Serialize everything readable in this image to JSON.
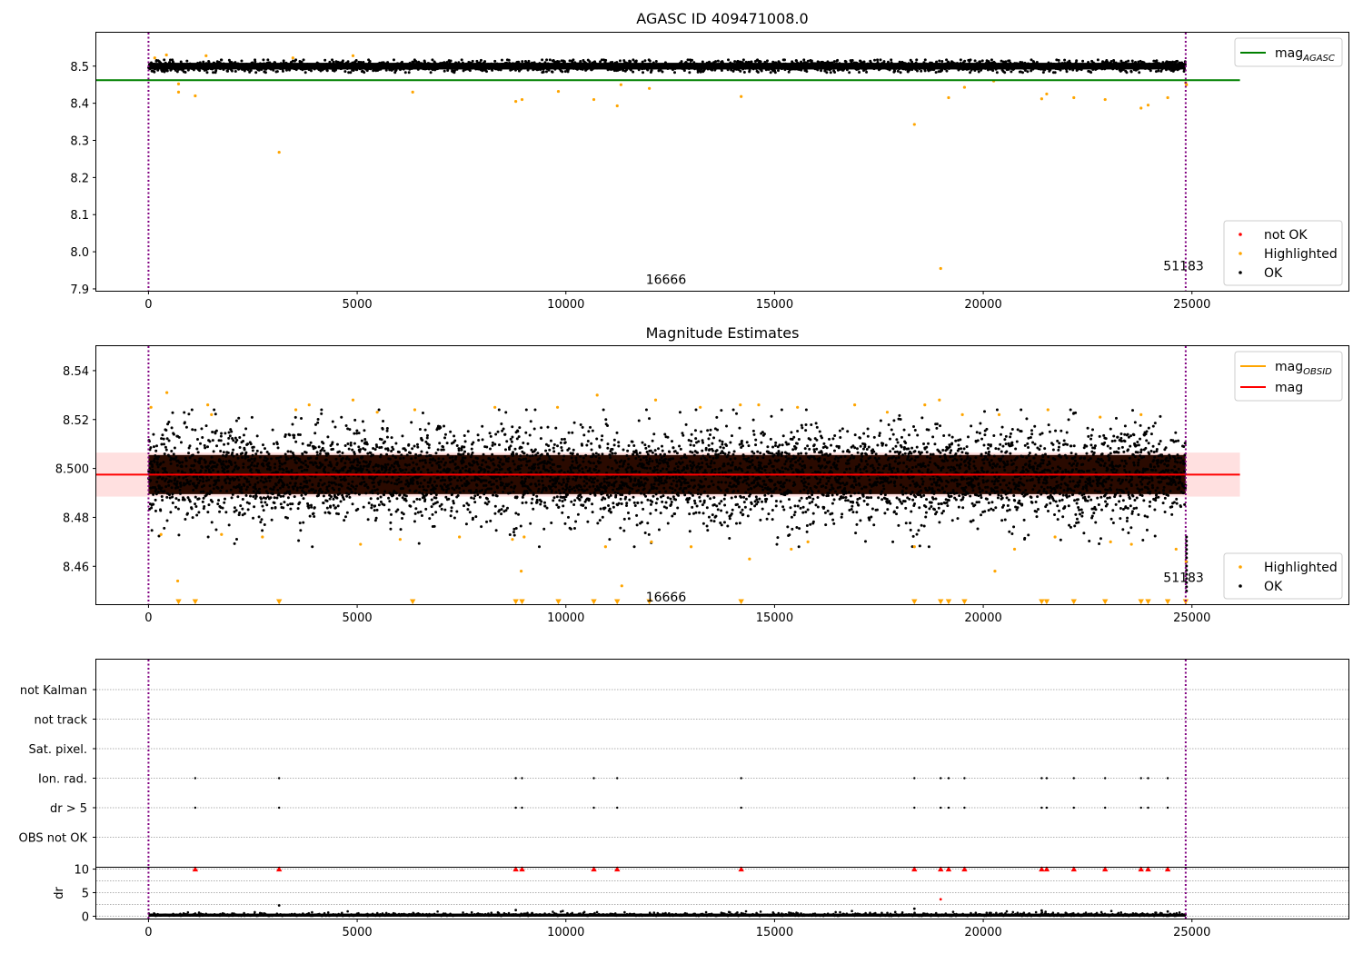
{
  "chart_data": [
    {
      "type": "scatter",
      "title": "AGASC ID 409471008.0",
      "xlim": [
        -1250,
        28750
      ],
      "ylim": [
        7.895,
        8.59
      ],
      "x_ticks": [
        0,
        5000,
        10000,
        15000,
        20000,
        25000
      ],
      "y_ticks": [
        7.9,
        8.0,
        8.1,
        8.2,
        8.3,
        8.4,
        8.5
      ],
      "y_tick_labels": [
        "7.9",
        "8.0",
        "8.1",
        "8.2",
        "8.3",
        "8.4",
        "8.5"
      ],
      "mag_agasc": 8.462,
      "mag_agasc_line_xrange": [
        -1250,
        26150
      ],
      "ok_band": {
        "center": 8.5,
        "halfwidth": 0.01,
        "x": [
          0,
          24850
        ]
      },
      "obs_boundaries": [
        0,
        24850
      ],
      "annotations": [
        {
          "text": "16666",
          "x": 12400,
          "y": 7.925
        },
        {
          "text": "51183",
          "x": 24800,
          "y": 7.962
        }
      ],
      "legend_lines": [
        {
          "label": "mag",
          "subscript": "AGASC",
          "color": "#008000"
        }
      ],
      "legend_points": [
        {
          "label": "not OK",
          "color": "#ff0000"
        },
        {
          "label": "Highlighted",
          "color": "#ffa500"
        },
        {
          "label": "OK",
          "color": "#000000"
        }
      ],
      "highlighted_points": [
        {
          "x": 150,
          "y": 8.522
        },
        {
          "x": 430,
          "y": 8.53
        },
        {
          "x": 1380,
          "y": 8.528
        },
        {
          "x": 3460,
          "y": 8.522
        },
        {
          "x": 4900,
          "y": 8.528
        },
        {
          "x": 720,
          "y": 8.452
        },
        {
          "x": 720,
          "y": 8.43
        },
        {
          "x": 1120,
          "y": 8.42
        },
        {
          "x": 3130,
          "y": 8.268
        },
        {
          "x": 6330,
          "y": 8.43
        },
        {
          "x": 8800,
          "y": 8.405
        },
        {
          "x": 8950,
          "y": 8.41
        },
        {
          "x": 9820,
          "y": 8.432
        },
        {
          "x": 10670,
          "y": 8.41
        },
        {
          "x": 11230,
          "y": 8.393
        },
        {
          "x": 11320,
          "y": 8.45
        },
        {
          "x": 12000,
          "y": 8.44
        },
        {
          "x": 14200,
          "y": 8.418
        },
        {
          "x": 18350,
          "y": 8.343
        },
        {
          "x": 18980,
          "y": 7.955
        },
        {
          "x": 19170,
          "y": 8.415
        },
        {
          "x": 19550,
          "y": 8.443
        },
        {
          "x": 20250,
          "y": 8.46
        },
        {
          "x": 21400,
          "y": 8.412
        },
        {
          "x": 21520,
          "y": 8.425
        },
        {
          "x": 22170,
          "y": 8.415
        },
        {
          "x": 22920,
          "y": 8.41
        },
        {
          "x": 23780,
          "y": 8.387
        },
        {
          "x": 23950,
          "y": 8.395
        },
        {
          "x": 24420,
          "y": 8.415
        },
        {
          "x": 24850,
          "y": 8.455
        },
        {
          "x": 24870,
          "y": 8.45
        }
      ]
    },
    {
      "type": "scatter",
      "title": "Magnitude Estimates",
      "xlim": [
        -1250,
        28750
      ],
      "ylim": [
        8.4445,
        8.55
      ],
      "x_ticks": [
        0,
        5000,
        10000,
        15000,
        20000,
        25000
      ],
      "y_ticks": [
        8.46,
        8.48,
        8.5,
        8.52,
        8.54
      ],
      "y_tick_labels": [
        "8.46",
        "8.48",
        "8.500",
        "8.52",
        "8.54"
      ],
      "mag_line": 8.4975,
      "mag_band": [
        8.4885,
        8.5065
      ],
      "mag_line_xrange": [
        -1250,
        26150
      ],
      "obs_boundaries": [
        0,
        24850
      ],
      "annotations": [
        {
          "text": "16666",
          "x": 12400,
          "y": 8.4475
        },
        {
          "text": "51183",
          "x": 24800,
          "y": 8.4555
        }
      ],
      "legend_lines": [
        {
          "label": "mag",
          "subscript": "OBSID",
          "color": "#ffa500"
        },
        {
          "label": "mag",
          "subscript": "",
          "color": "#ff0000"
        }
      ],
      "legend_points": [
        {
          "label": "Highlighted",
          "color": "#ffa500"
        },
        {
          "label": "OK",
          "color": "#000000"
        }
      ],
      "highlighted_points": [
        {
          "x": 60,
          "y": 8.525
        },
        {
          "x": 440,
          "y": 8.531
        },
        {
          "x": 1420,
          "y": 8.526
        },
        {
          "x": 1510,
          "y": 8.522
        },
        {
          "x": 3530,
          "y": 8.524
        },
        {
          "x": 3850,
          "y": 8.526
        },
        {
          "x": 4900,
          "y": 8.528
        },
        {
          "x": 5480,
          "y": 8.523
        },
        {
          "x": 6380,
          "y": 8.524
        },
        {
          "x": 8300,
          "y": 8.525
        },
        {
          "x": 9800,
          "y": 8.525
        },
        {
          "x": 10750,
          "y": 8.53
        },
        {
          "x": 12150,
          "y": 8.528
        },
        {
          "x": 13220,
          "y": 8.525
        },
        {
          "x": 14180,
          "y": 8.526
        },
        {
          "x": 14620,
          "y": 8.526
        },
        {
          "x": 15550,
          "y": 8.525
        },
        {
          "x": 16920,
          "y": 8.526
        },
        {
          "x": 17700,
          "y": 8.523
        },
        {
          "x": 18600,
          "y": 8.526
        },
        {
          "x": 18950,
          "y": 8.528
        },
        {
          "x": 19500,
          "y": 8.522
        },
        {
          "x": 20380,
          "y": 8.522
        },
        {
          "x": 21550,
          "y": 8.524
        },
        {
          "x": 22800,
          "y": 8.521
        },
        {
          "x": 23780,
          "y": 8.522
        },
        {
          "x": 300,
          "y": 8.473
        },
        {
          "x": 700,
          "y": 8.454
        },
        {
          "x": 1750,
          "y": 8.473
        },
        {
          "x": 2730,
          "y": 8.472
        },
        {
          "x": 5080,
          "y": 8.469
        },
        {
          "x": 6030,
          "y": 8.471
        },
        {
          "x": 7450,
          "y": 8.472
        },
        {
          "x": 8720,
          "y": 8.471
        },
        {
          "x": 8930,
          "y": 8.458
        },
        {
          "x": 9000,
          "y": 8.472
        },
        {
          "x": 10950,
          "y": 8.468
        },
        {
          "x": 11340,
          "y": 8.452
        },
        {
          "x": 12050,
          "y": 8.47
        },
        {
          "x": 13000,
          "y": 8.468
        },
        {
          "x": 14400,
          "y": 8.463
        },
        {
          "x": 15400,
          "y": 8.467
        },
        {
          "x": 15800,
          "y": 8.47
        },
        {
          "x": 18350,
          "y": 8.468
        },
        {
          "x": 20280,
          "y": 8.458
        },
        {
          "x": 20750,
          "y": 8.467
        },
        {
          "x": 21720,
          "y": 8.472
        },
        {
          "x": 23050,
          "y": 8.47
        },
        {
          "x": 23550,
          "y": 8.469
        },
        {
          "x": 24620,
          "y": 8.467
        },
        {
          "x": 24860,
          "y": 8.462
        }
      ],
      "below_range_markers_x": [
        720,
        1120,
        3130,
        6330,
        8800,
        8950,
        9820,
        10670,
        11230,
        12000,
        14200,
        18350,
        18980,
        19170,
        19550,
        21400,
        21520,
        22170,
        22920,
        23780,
        23950,
        24420,
        24850
      ]
    },
    {
      "type": "scatter",
      "title": "",
      "xlim": [
        -1250,
        28750
      ],
      "x_ticks": [
        0,
        5000,
        10000,
        15000,
        20000,
        25000
      ],
      "flag_labels": [
        "not Kalman",
        "not track",
        "Sat. pixel.",
        "Ion. rad.",
        "dr > 5",
        "OBS not OK"
      ],
      "flagged_x": [
        1120,
        3130,
        8800,
        8950,
        10670,
        11230,
        14200,
        18350,
        18980,
        19170,
        19550,
        21400,
        21520,
        22170,
        22920,
        23780,
        23950,
        24420
      ],
      "flags_set": [
        "Ion. rad.",
        "dr > 5"
      ],
      "dr_ylabel": "dr",
      "dr_ylim": [
        -0.5,
        10.3
      ],
      "dr_y_ticks": [
        0,
        5,
        10
      ],
      "dr_capped_marker_value": 10,
      "dr_outliers": [
        {
          "x": 3130,
          "y": 2.3
        },
        {
          "x": 8800,
          "y": 1.3
        },
        {
          "x": 18350,
          "y": 1.6
        },
        {
          "x": 18980,
          "y": 3.6
        },
        {
          "x": 21400,
          "y": 1.2
        },
        {
          "x": 24420,
          "y": 1.0
        }
      ],
      "obs_boundaries": [
        0,
        24850
      ]
    }
  ]
}
